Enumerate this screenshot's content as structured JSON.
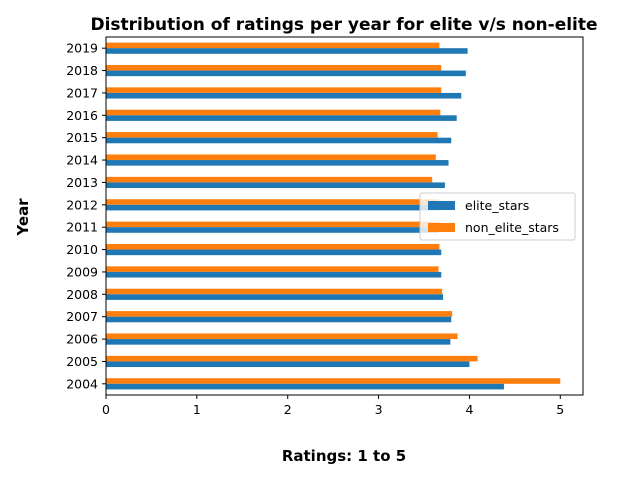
{
  "chart_data": {
    "type": "bar",
    "orientation": "horizontal",
    "title": "Distribution of ratings per year for elite v/s non-elite",
    "xlabel": "Ratings: 1 to 5",
    "ylabel": "Year",
    "categories": [
      "2004",
      "2005",
      "2006",
      "2007",
      "2008",
      "2009",
      "2010",
      "2011",
      "2012",
      "2013",
      "2014",
      "2015",
      "2016",
      "2017",
      "2018",
      "2019"
    ],
    "series": [
      {
        "name": "elite_stars",
        "color": "#1f77b4",
        "values": [
          4.38,
          4.0,
          3.79,
          3.8,
          3.71,
          3.69,
          3.69,
          3.66,
          3.69,
          3.73,
          3.77,
          3.8,
          3.86,
          3.91,
          3.96,
          3.98
        ]
      },
      {
        "name": "non_elite_stars",
        "color": "#ff7f0e",
        "values": [
          5.0,
          4.09,
          3.87,
          3.81,
          3.7,
          3.66,
          3.67,
          3.68,
          3.66,
          3.59,
          3.63,
          3.65,
          3.68,
          3.69,
          3.69,
          3.67
        ]
      }
    ],
    "xlim": [
      0,
      5.25
    ],
    "xticks": [
      0,
      1,
      2,
      3,
      4,
      5
    ],
    "grid": false,
    "legend_position": "center-right"
  }
}
